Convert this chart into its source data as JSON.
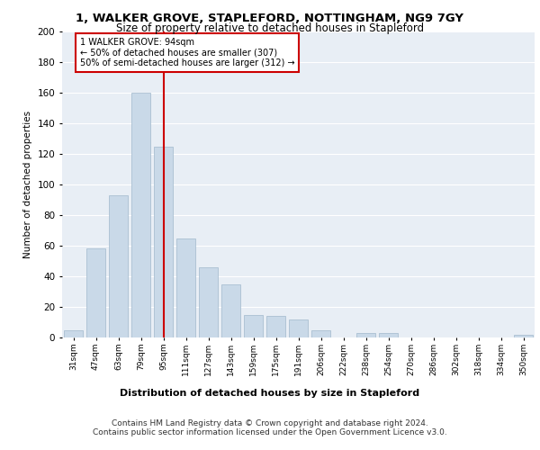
{
  "title": "1, WALKER GROVE, STAPLEFORD, NOTTINGHAM, NG9 7GY",
  "subtitle": "Size of property relative to detached houses in Stapleford",
  "xlabel": "Distribution of detached houses by size in Stapleford",
  "ylabel": "Number of detached properties",
  "categories": [
    "31sqm",
    "47sqm",
    "63sqm",
    "79sqm",
    "95sqm",
    "111sqm",
    "127sqm",
    "143sqm",
    "159sqm",
    "175sqm",
    "191sqm",
    "206sqm",
    "222sqm",
    "238sqm",
    "254sqm",
    "270sqm",
    "286sqm",
    "302sqm",
    "318sqm",
    "334sqm",
    "350sqm"
  ],
  "values": [
    5,
    58,
    93,
    160,
    125,
    65,
    46,
    35,
    15,
    14,
    12,
    5,
    0,
    3,
    3,
    0,
    0,
    0,
    0,
    0,
    2
  ],
  "bar_color": "#c9d9e8",
  "bar_edge_color": "#a0b8cc",
  "background_color": "#e8eef5",
  "vline_x": 4,
  "vline_color": "#cc0000",
  "annotation_text": "1 WALKER GROVE: 94sqm\n← 50% of detached houses are smaller (307)\n50% of semi-detached houses are larger (312) →",
  "annotation_box_color": "white",
  "annotation_box_edge_color": "#cc0000",
  "ylim": [
    0,
    200
  ],
  "yticks": [
    0,
    20,
    40,
    60,
    80,
    100,
    120,
    140,
    160,
    180,
    200
  ],
  "footer_line1": "Contains HM Land Registry data © Crown copyright and database right 2024.",
  "footer_line2": "Contains public sector information licensed under the Open Government Licence v3.0."
}
